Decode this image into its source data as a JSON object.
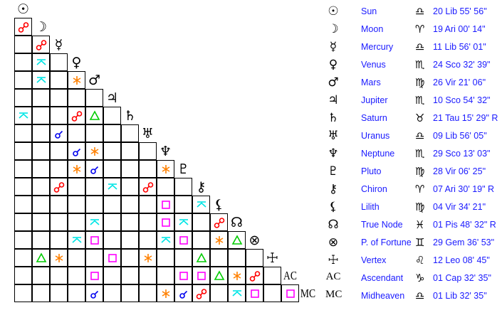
{
  "planets": [
    {
      "name": "Sun",
      "glyph": "☉",
      "sign_glyph": "♎",
      "position": "20 Lib 55' 56\""
    },
    {
      "name": "Moon",
      "glyph": "☽",
      "sign_glyph": "♈",
      "position": "19 Ari 00' 14\""
    },
    {
      "name": "Mercury",
      "glyph": "☿",
      "sign_glyph": "♎",
      "position": "11 Lib 56' 01\""
    },
    {
      "name": "Venus",
      "glyph": "♀",
      "sign_glyph": "♏",
      "position": "24 Sco 32' 39\""
    },
    {
      "name": "Mars",
      "glyph": "♂",
      "sign_glyph": "♍",
      "position": "26 Vir 21' 06\""
    },
    {
      "name": "Jupiter",
      "glyph": "♃",
      "sign_glyph": "♏",
      "position": "10 Sco 54' 32\""
    },
    {
      "name": "Saturn",
      "glyph": "♄",
      "sign_glyph": "♉",
      "position": "21 Tau 15' 29\" R"
    },
    {
      "name": "Uranus",
      "glyph": "♅",
      "sign_glyph": "♎",
      "position": "09 Lib 56' 05\""
    },
    {
      "name": "Neptune",
      "glyph": "♆",
      "sign_glyph": "♏",
      "position": "29 Sco 13' 03\""
    },
    {
      "name": "Pluto",
      "glyph": "♇",
      "sign_glyph": "♍",
      "position": "28 Vir 06' 25\""
    },
    {
      "name": "Chiron",
      "glyph": "⚷",
      "sign_glyph": "♈",
      "position": "07 Ari 30' 19\" R"
    },
    {
      "name": "Lilith",
      "glyph": "⚸",
      "sign_glyph": "♍",
      "position": "04 Vir 34' 21\""
    },
    {
      "name": "True Node",
      "glyph": "☊",
      "sign_glyph": "♓",
      "position": "01 Pis 48' 32\" R"
    },
    {
      "name": "P. of Fortune",
      "glyph": "⊗",
      "sign_glyph": "♊",
      "position": "29 Gem 36' 53\""
    },
    {
      "name": "Vertex",
      "glyph": "☩",
      "sign_glyph": "♌",
      "position": "12 Leo 08' 45\""
    },
    {
      "name": "Ascendant",
      "glyph": "AC",
      "sign_glyph": "♑",
      "position": "01 Cap 32' 35\""
    },
    {
      "name": "Midheaven",
      "glyph": "MC",
      "sign_glyph": "♎",
      "position": "01 Lib 32' 35\""
    }
  ],
  "aspect_colors": {
    "opposition": "#ff0000",
    "quincunx": "#00e5e5",
    "sextile": "#ff8000",
    "trine": "#00cc00",
    "square": "#ff00ff",
    "conjunction": "#0000ee"
  },
  "aspects": [
    {
      "a": 1,
      "b": 0,
      "type": "opposition"
    },
    {
      "a": 2,
      "b": 1,
      "type": "opposition"
    },
    {
      "a": 3,
      "b": 1,
      "type": "quincunx"
    },
    {
      "a": 4,
      "b": 1,
      "type": "quincunx"
    },
    {
      "a": 4,
      "b": 3,
      "type": "sextile"
    },
    {
      "a": 6,
      "b": 0,
      "type": "quincunx"
    },
    {
      "a": 6,
      "b": 3,
      "type": "opposition"
    },
    {
      "a": 6,
      "b": 4,
      "type": "trine"
    },
    {
      "a": 7,
      "b": 2,
      "type": "conjunction"
    },
    {
      "a": 8,
      "b": 3,
      "type": "conjunction"
    },
    {
      "a": 8,
      "b": 4,
      "type": "sextile"
    },
    {
      "a": 9,
      "b": 3,
      "type": "sextile"
    },
    {
      "a": 9,
      "b": 4,
      "type": "conjunction"
    },
    {
      "a": 9,
      "b": 8,
      "type": "sextile"
    },
    {
      "a": 10,
      "b": 2,
      "type": "opposition"
    },
    {
      "a": 10,
      "b": 5,
      "type": "quincunx"
    },
    {
      "a": 10,
      "b": 7,
      "type": "opposition"
    },
    {
      "a": 11,
      "b": 8,
      "type": "square"
    },
    {
      "a": 11,
      "b": 10,
      "type": "quincunx"
    },
    {
      "a": 12,
      "b": 4,
      "type": "quincunx"
    },
    {
      "a": 12,
      "b": 8,
      "type": "square"
    },
    {
      "a": 12,
      "b": 9,
      "type": "quincunx"
    },
    {
      "a": 12,
      "b": 11,
      "type": "opposition"
    },
    {
      "a": 13,
      "b": 3,
      "type": "quincunx"
    },
    {
      "a": 13,
      "b": 4,
      "type": "square"
    },
    {
      "a": 13,
      "b": 8,
      "type": "quincunx"
    },
    {
      "a": 13,
      "b": 9,
      "type": "square"
    },
    {
      "a": 13,
      "b": 11,
      "type": "sextile"
    },
    {
      "a": 13,
      "b": 12,
      "type": "trine"
    },
    {
      "a": 14,
      "b": 1,
      "type": "trine"
    },
    {
      "a": 14,
      "b": 2,
      "type": "sextile"
    },
    {
      "a": 14,
      "b": 5,
      "type": "square"
    },
    {
      "a": 14,
      "b": 7,
      "type": "sextile"
    },
    {
      "a": 14,
      "b": 10,
      "type": "trine"
    },
    {
      "a": 15,
      "b": 4,
      "type": "square"
    },
    {
      "a": 15,
      "b": 9,
      "type": "square"
    },
    {
      "a": 15,
      "b": 10,
      "type": "square"
    },
    {
      "a": 15,
      "b": 11,
      "type": "trine"
    },
    {
      "a": 15,
      "b": 12,
      "type": "sextile"
    },
    {
      "a": 15,
      "b": 13,
      "type": "opposition"
    },
    {
      "a": 16,
      "b": 4,
      "type": "conjunction"
    },
    {
      "a": 16,
      "b": 8,
      "type": "sextile"
    },
    {
      "a": 16,
      "b": 9,
      "type": "conjunction"
    },
    {
      "a": 16,
      "b": 10,
      "type": "opposition"
    },
    {
      "a": 16,
      "b": 12,
      "type": "quincunx"
    },
    {
      "a": 16,
      "b": 13,
      "type": "square"
    },
    {
      "a": 16,
      "b": 15,
      "type": "square"
    }
  ]
}
